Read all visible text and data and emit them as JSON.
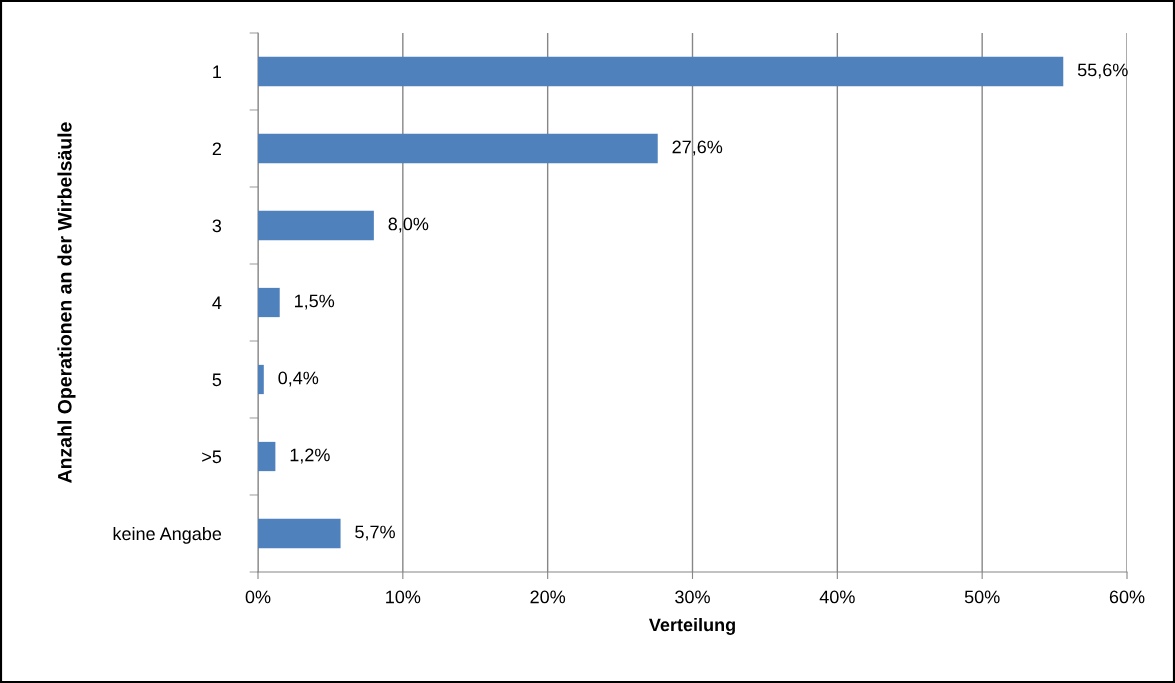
{
  "chart_data": {
    "type": "bar",
    "orientation": "horizontal",
    "xlabel": "Verteilung",
    "ylabel": "Anzahl Operationen an der Wirbelsäule",
    "categories": [
      "1",
      "2",
      "3",
      "4",
      "5",
      ">5",
      "keine Angabe"
    ],
    "values": [
      55.6,
      27.6,
      8.0,
      1.5,
      0.4,
      1.2,
      5.7
    ],
    "value_labels": [
      "55,6%",
      "27,6%",
      "8,0%",
      "1,5%",
      "0,4%",
      "1,2%",
      "5,7%"
    ],
    "color": "#4f81bd",
    "xlim": [
      0,
      60
    ],
    "xticks": [
      {
        "value": 0,
        "label": "0%"
      },
      {
        "value": 10,
        "label": "10%"
      },
      {
        "value": 20,
        "label": "20%"
      },
      {
        "value": 30,
        "label": "30%"
      },
      {
        "value": 40,
        "label": "40%"
      },
      {
        "value": 50,
        "label": "50%"
      },
      {
        "value": 60,
        "label": "60%"
      }
    ],
    "grid": "x"
  }
}
